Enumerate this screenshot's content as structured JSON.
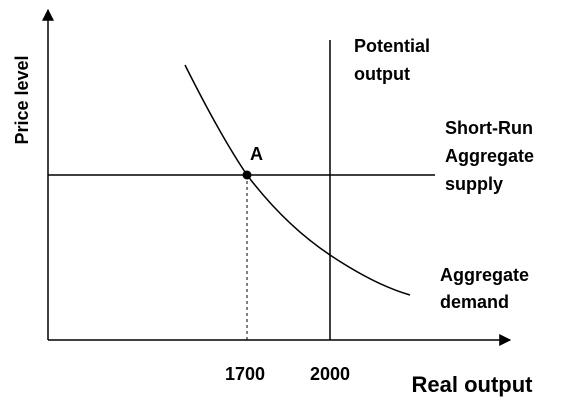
{
  "axes": {
    "y_label": "Price level",
    "x_label": "Real output",
    "x_marks": [
      "1700",
      "2000"
    ]
  },
  "curves": {
    "potential_output": [
      "Potential",
      "output"
    ],
    "short_run_supply": [
      "Short-Run",
      "Aggregate",
      "supply"
    ],
    "aggregate_demand": [
      "Aggregate",
      "demand"
    ]
  },
  "point": {
    "label": "A"
  }
}
